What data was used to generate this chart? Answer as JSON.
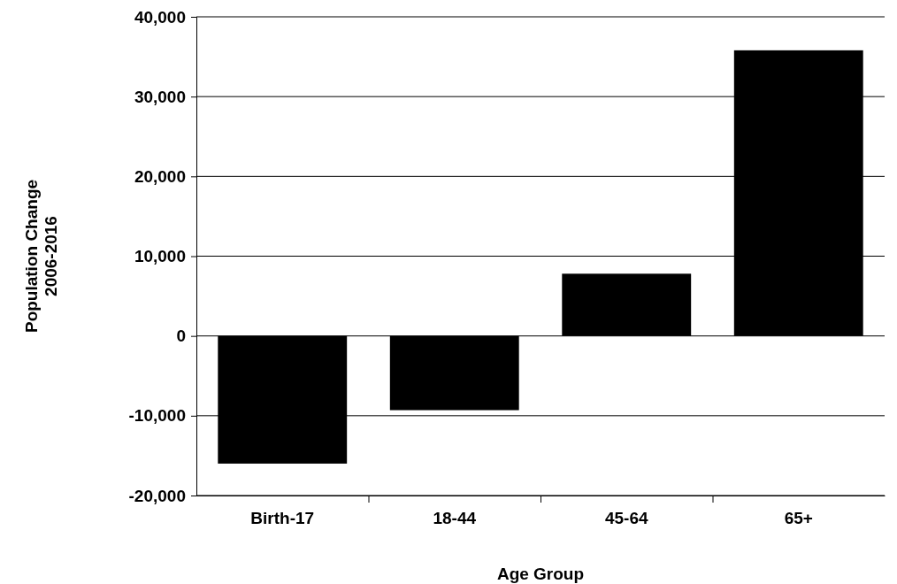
{
  "chart_data": {
    "type": "bar",
    "xlabel": "Age Group",
    "ylabel": "Population Change\n2006-2016",
    "categories": [
      "Birth-17",
      "18-44",
      "45-64",
      "65+"
    ],
    "values": [
      -16000,
      -9300,
      7800,
      35800
    ],
    "color": "#000000",
    "ylim": [
      -20000,
      40000
    ],
    "yticks": [
      {
        "value": -20000,
        "label": "-20,000"
      },
      {
        "value": -10000,
        "label": "-10,000"
      },
      0,
      {
        "value": 10000,
        "label": "10,000"
      },
      {
        "value": 20000,
        "label": "20,000"
      },
      {
        "value": 30000,
        "label": "30,000"
      },
      {
        "value": 40000,
        "label": "40,000"
      }
    ],
    "grid": "y"
  }
}
